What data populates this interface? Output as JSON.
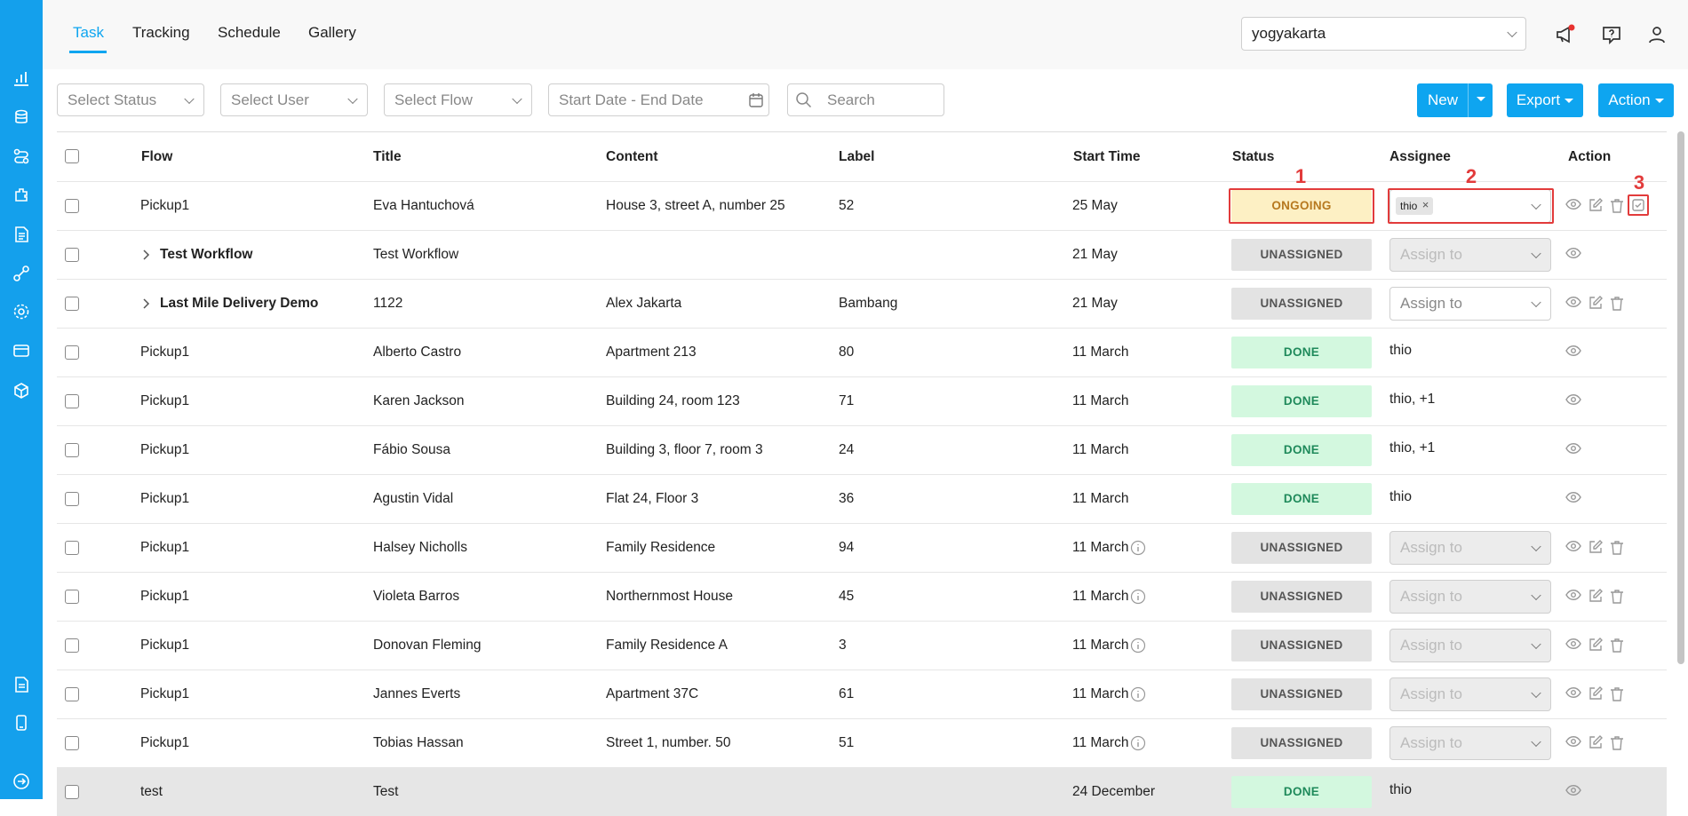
{
  "tabs": [
    "Task",
    "Tracking",
    "Schedule",
    "Gallery"
  ],
  "location": "yogyakarta",
  "filters": {
    "status": "Select Status",
    "user": "Select User",
    "flow": "Select Flow",
    "date": "Start Date - End Date",
    "search": "Search"
  },
  "buttons": {
    "new": "New",
    "export": "Export",
    "action": "Action"
  },
  "table": {
    "headers": [
      "Flow",
      "Title",
      "Content",
      "Label",
      "Start Time",
      "Status",
      "Assignee",
      "Action"
    ],
    "rows": [
      {
        "flow": "Pickup1",
        "title": "Eva Hantuchová",
        "content": "House 3, street A, number 25",
        "label": 52,
        "start": "25 May",
        "status": "ONGOING",
        "assignee": {
          "chip": "thio"
        },
        "actions": 4
      },
      {
        "flow": "Test Workflow",
        "expandable": true,
        "title": "Test Workflow",
        "content": null,
        "label": null,
        "start": "21 May",
        "status": "UNASSIGNED",
        "assignee": {
          "placeholder": "Assign to",
          "disabled": true
        },
        "actions": 1
      },
      {
        "flow": "Last Mile Delivery Demo",
        "expandable": true,
        "title": "1122",
        "content": "Alex Jakarta",
        "label": "Bambang",
        "start": "21 May",
        "status": "UNASSIGNED",
        "assignee": {
          "placeholder": "Assign to",
          "disabled": false
        },
        "actions": 3
      },
      {
        "flow": "Pickup1",
        "title": "Alberto Castro",
        "content": "Apartment 213",
        "label": 80,
        "start": "11 March",
        "status": "DONE",
        "assignee": {
          "text": "thio"
        },
        "actions": 1
      },
      {
        "flow": "Pickup1",
        "title": "Karen Jackson",
        "content": "Building 24, room 123",
        "label": 71,
        "start": "11 March",
        "status": "DONE",
        "assignee": {
          "text": "thio, +1"
        },
        "actions": 1
      },
      {
        "flow": "Pickup1",
        "title": "Fábio Sousa",
        "content": "Building 3, floor 7, room 3",
        "label": 24,
        "start": "11 March",
        "status": "DONE",
        "assignee": {
          "text": "thio, +1"
        },
        "actions": 1
      },
      {
        "flow": "Pickup1",
        "title": "Agustin Vidal",
        "content": "Flat 24, Floor 3",
        "label": 36,
        "start": "11 March",
        "status": "DONE",
        "assignee": {
          "text": "thio"
        },
        "actions": 1
      },
      {
        "flow": "Pickup1",
        "title": "Halsey Nicholls",
        "content": "Family Residence",
        "label": 94,
        "start": "11 March",
        "info": true,
        "status": "UNASSIGNED",
        "assignee": {
          "placeholder": "Assign to",
          "disabled": true
        },
        "actions": 3
      },
      {
        "flow": "Pickup1",
        "title": "Violeta Barros",
        "content": "Northernmost House",
        "label": 45,
        "start": "11 March",
        "info": true,
        "status": "UNASSIGNED",
        "assignee": {
          "placeholder": "Assign to",
          "disabled": true
        },
        "actions": 3
      },
      {
        "flow": "Pickup1",
        "title": "Donovan Fleming",
        "content": "Family Residence A",
        "label": 3,
        "start": "11 March",
        "info": true,
        "status": "UNASSIGNED",
        "assignee": {
          "placeholder": "Assign to",
          "disabled": true
        },
        "actions": 3
      },
      {
        "flow": "Pickup1",
        "title": "Jannes Everts",
        "content": "Apartment 37C",
        "label": 61,
        "start": "11 March",
        "info": true,
        "status": "UNASSIGNED",
        "assignee": {
          "placeholder": "Assign to",
          "disabled": true
        },
        "actions": 3
      },
      {
        "flow": "Pickup1",
        "title": "Tobias Hassan",
        "content": "Street 1, number. 50",
        "label": 51,
        "start": "11 March",
        "info": true,
        "status": "UNASSIGNED",
        "assignee": {
          "placeholder": "Assign to",
          "disabled": true
        },
        "actions": 3
      },
      {
        "flow": "test",
        "title": "Test",
        "content": null,
        "label": null,
        "start": "24 December",
        "status": "DONE",
        "assignee": {
          "text": "thio"
        },
        "actions": 1,
        "highlighted": true
      }
    ]
  },
  "annotations": [
    "1",
    "2",
    "3"
  ]
}
